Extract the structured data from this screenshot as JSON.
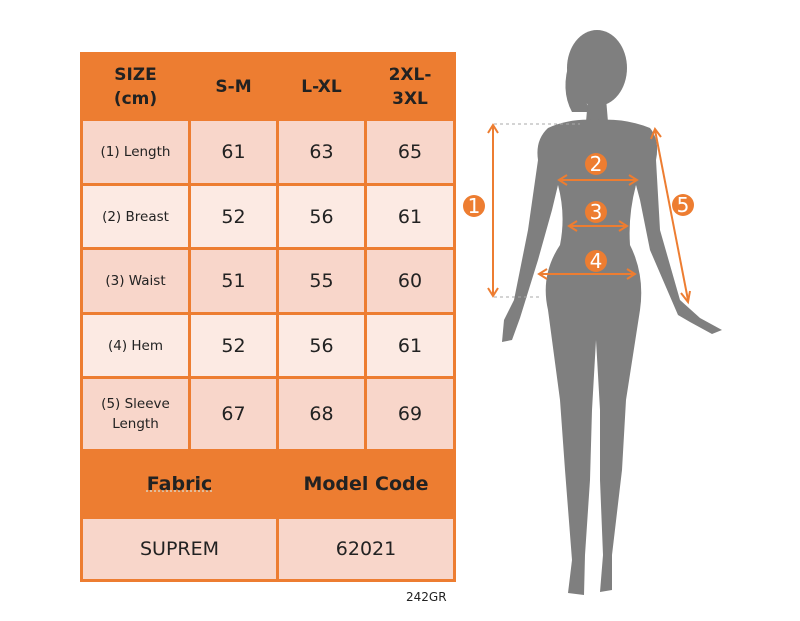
{
  "table": {
    "header": [
      "SIZE\n(cm)",
      "S-M",
      "L-XL",
      "2XL-\n3XL"
    ],
    "rows": [
      {
        "label": "(1) Length",
        "values": [
          "61",
          "63",
          "65"
        ]
      },
      {
        "label": "(2) Breast",
        "values": [
          "52",
          "56",
          "61"
        ]
      },
      {
        "label": "(3) Waist",
        "values": [
          "51",
          "55",
          "60"
        ]
      },
      {
        "label": "(4) Hem",
        "values": [
          "52",
          "56",
          "61"
        ]
      },
      {
        "label": "(5) Sleeve Length",
        "values": [
          "67",
          "68",
          "69"
        ]
      }
    ],
    "fabric_header": "Fabric",
    "model_code_header": "Model Code",
    "fabric_value": "SUPREM",
    "model_code_value": "62021"
  },
  "product_code": "242GR",
  "figure": {
    "markers": [
      "1",
      "2",
      "3",
      "4",
      "5"
    ]
  },
  "colors": {
    "accent": "#ED7D31",
    "silhouette": "#7F7F7F",
    "row_dark": "#F8D6CA",
    "row_light": "#FCEAE3"
  }
}
